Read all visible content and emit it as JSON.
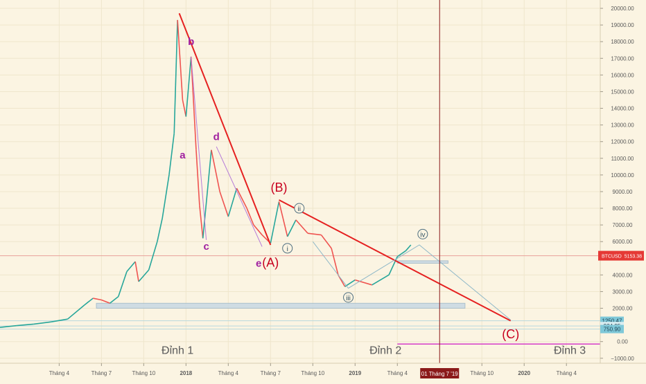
{
  "chart_data": {
    "type": "line",
    "symbol": "BTCUSD",
    "price_axis": {
      "ticks": [
        "20000.00",
        "19000.00",
        "18000.00",
        "17000.00",
        "16000.00",
        "15000.00",
        "14000.00",
        "13000.00",
        "12000.00",
        "11000.00",
        "10000.00",
        "9000.00",
        "8000.00",
        "7000.00",
        "6000.00",
        "4000.00",
        "3000.00",
        "2000.00",
        "0.00",
        "−1000.00"
      ],
      "range": [
        -1300,
        20500
      ]
    },
    "price_badges": [
      {
        "label": "BTCUSD",
        "value": "5153.38",
        "price": 5153.38,
        "color": "#e53935"
      },
      {
        "label": "",
        "value": "1250.47",
        "price": 1250.47,
        "color": "#7ec8d8"
      },
      {
        "label": "",
        "value": "934.95",
        "price": 934.95,
        "color": "#d8ecf0"
      },
      {
        "label": "",
        "value": "750.90",
        "price": 750.9,
        "color": "#7ec8d8"
      }
    ],
    "time_axis": {
      "ticks": [
        {
          "label": "Tháng 4",
          "t": 2017.25
        },
        {
          "label": "Tháng 7",
          "t": 2017.5
        },
        {
          "label": "Tháng 10",
          "t": 2017.75
        },
        {
          "label": "2018",
          "t": 2018.0,
          "bold": true
        },
        {
          "label": "Tháng 4",
          "t": 2018.25
        },
        {
          "label": "Tháng 7",
          "t": 2018.5
        },
        {
          "label": "Tháng 10",
          "t": 2018.75
        },
        {
          "label": "2019",
          "t": 2019.0,
          "bold": true
        },
        {
          "label": "Tháng 4",
          "t": 2019.25
        },
        {
          "label": "Tháng 10",
          "t": 2019.75
        },
        {
          "label": "2020",
          "t": 2020.0,
          "bold": true
        },
        {
          "label": "Tháng 4",
          "t": 2020.25
        }
      ],
      "cursor": {
        "label": "01 Tháng 7 '19",
        "t": 2019.5
      }
    },
    "price_series": {
      "color_up": "#26a69a",
      "color_down": "#ef5350",
      "points": [
        [
          2016.9,
          850
        ],
        [
          2017.0,
          960
        ],
        [
          2017.1,
          1050
        ],
        [
          2017.2,
          1180
        ],
        [
          2017.3,
          1350
        ],
        [
          2017.4,
          2200
        ],
        [
          2017.45,
          2600
        ],
        [
          2017.5,
          2500
        ],
        [
          2017.55,
          2300
        ],
        [
          2017.6,
          2700
        ],
        [
          2017.65,
          4200
        ],
        [
          2017.7,
          4800
        ],
        [
          2017.72,
          3600
        ],
        [
          2017.78,
          4300
        ],
        [
          2017.83,
          6000
        ],
        [
          2017.86,
          7400
        ],
        [
          2017.9,
          10000
        ],
        [
          2017.93,
          12500
        ],
        [
          2017.95,
          19300
        ],
        [
          2017.98,
          14500
        ],
        [
          2018.0,
          13500
        ],
        [
          2018.03,
          17100
        ],
        [
          2018.06,
          11500
        ],
        [
          2018.08,
          8200
        ],
        [
          2018.1,
          6200
        ],
        [
          2018.15,
          11500
        ],
        [
          2018.2,
          9000
        ],
        [
          2018.25,
          7500
        ],
        [
          2018.3,
          9200
        ],
        [
          2018.36,
          8000
        ],
        [
          2018.4,
          7000
        ],
        [
          2018.45,
          6400
        ],
        [
          2018.5,
          5900
        ],
        [
          2018.55,
          8400
        ],
        [
          2018.6,
          6300
        ],
        [
          2018.65,
          7300
        ],
        [
          2018.72,
          6500
        ],
        [
          2018.8,
          6400
        ],
        [
          2018.86,
          5600
        ],
        [
          2018.9,
          4000
        ],
        [
          2018.94,
          3300
        ],
        [
          2019.0,
          3700
        ],
        [
          2019.1,
          3400
        ],
        [
          2019.2,
          4000
        ],
        [
          2019.25,
          5100
        ],
        [
          2019.3,
          5450
        ],
        [
          2019.33,
          5800
        ]
      ]
    },
    "zones": [
      {
        "t0": 2017.47,
        "t1": 2019.65,
        "p0": 2300,
        "p1": 2000
      },
      {
        "t0": 2019.25,
        "t1": 2019.55,
        "p0": 4850,
        "p1": 4700
      }
    ],
    "horizontal_lines": [
      {
        "price": 5153.38,
        "color": "#e8a09a"
      },
      {
        "price": 1250.47,
        "color": "#b8d8de"
      },
      {
        "price": 934.95,
        "color": "#b8d8de"
      },
      {
        "price": 750.9,
        "color": "#b8d8de"
      },
      {
        "price": -150,
        "t0": 2019.25,
        "color": "#d63cc8"
      }
    ],
    "trendlines": [
      {
        "name": "A-leg",
        "points": [
          [
            2017.96,
            19700
          ],
          [
            2018.5,
            5800
          ]
        ],
        "color": "#e52020",
        "width": 2
      },
      {
        "name": "B-C",
        "points": [
          [
            2018.55,
            8500
          ],
          [
            2019.92,
            1250
          ]
        ],
        "color": "#e52020",
        "width": 2
      },
      {
        "name": "d-e",
        "points": [
          [
            2018.18,
            11700
          ],
          [
            2018.45,
            5700
          ]
        ],
        "color": "#b57ad8",
        "width": 1
      },
      {
        "name": "b-c",
        "points": [
          [
            2018.03,
            17100
          ],
          [
            2018.12,
            6100
          ]
        ],
        "color": "#b57ad8",
        "width": 1
      },
      {
        "name": "iii-path",
        "points": [
          [
            2018.75,
            6000
          ],
          [
            2018.96,
            3200
          ],
          [
            2019.25,
            5000
          ],
          [
            2019.38,
            5800
          ],
          [
            2019.92,
            1300
          ]
        ],
        "color": "#8fb8c8",
        "width": 1
      }
    ],
    "wave_labels": [
      {
        "text": "a",
        "t": 2017.98,
        "p": 11000,
        "color": "#a020a0"
      },
      {
        "text": "b",
        "t": 2018.03,
        "p": 17800,
        "color": "#a020a0"
      },
      {
        "text": "c",
        "t": 2018.12,
        "p": 5500,
        "color": "#a020a0"
      },
      {
        "text": "d",
        "t": 2018.18,
        "p": 12100,
        "color": "#a020a0"
      },
      {
        "text": "e",
        "t": 2018.43,
        "p": 4500,
        "color": "#a020a0"
      },
      {
        "text": "(A)",
        "t": 2018.5,
        "p": 4500,
        "color": "#c8001e"
      },
      {
        "text": "(B)",
        "t": 2018.55,
        "p": 9000,
        "color": "#c8001e"
      },
      {
        "text": "(C)",
        "t": 2019.92,
        "p": 200,
        "color": "#c8001e"
      }
    ],
    "circled_labels": [
      {
        "text": "i",
        "t": 2018.6,
        "p": 5600
      },
      {
        "text": "ii",
        "t": 2018.67,
        "p": 8000
      },
      {
        "text": "iii",
        "t": 2018.96,
        "p": 2650
      },
      {
        "text": "iv",
        "t": 2019.4,
        "p": 6450
      }
    ],
    "annotations": [
      {
        "text": "Đỉnh 1",
        "t": 2017.95,
        "p": -200
      },
      {
        "text": "Đỉnh 2",
        "t": 2019.18,
        "p": -200
      },
      {
        "text": "Đỉnh 3",
        "t": 2020.27,
        "p": -200
      }
    ]
  }
}
